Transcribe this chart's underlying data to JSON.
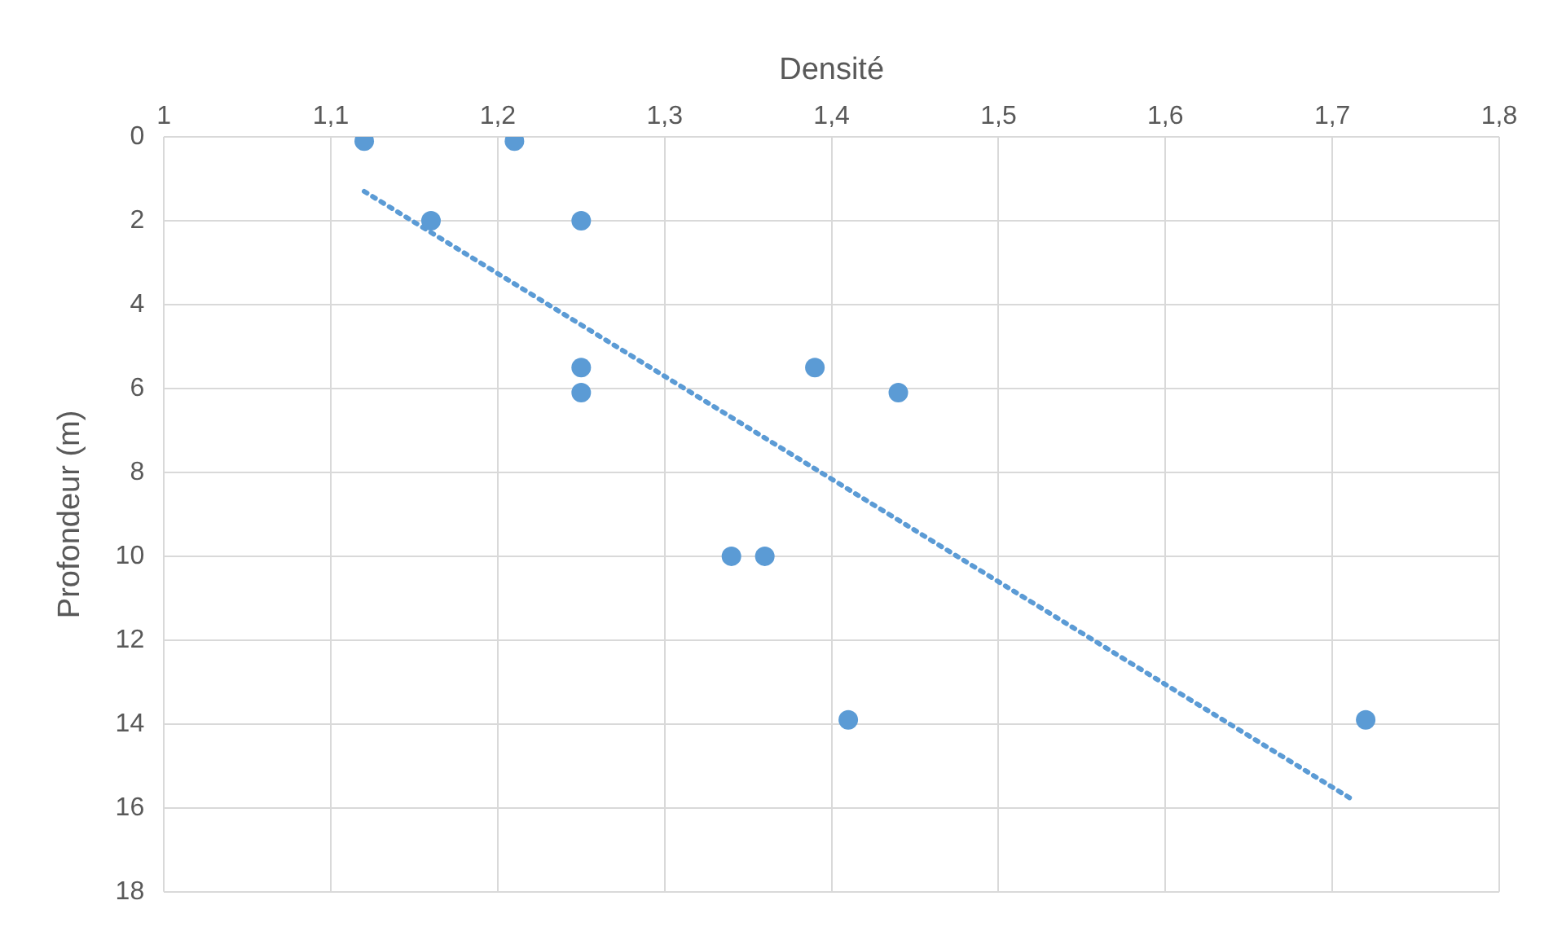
{
  "chart_data": {
    "type": "scatter",
    "xlabel": "Densité",
    "ylabel": "Profondeur (m)",
    "xlim": [
      1,
      1.8
    ],
    "xticks": [
      1,
      {
        "value": 1.1,
        "label": "1,1"
      },
      {
        "value": 1.2,
        "label": "1,2"
      },
      {
        "value": 1.3,
        "label": "1,3"
      },
      {
        "value": 1.4,
        "label": "1,4"
      },
      {
        "value": 1.5,
        "label": "1,5"
      },
      {
        "value": 1.6,
        "label": "1,6"
      },
      {
        "value": 1.7,
        "label": "1,7"
      },
      {
        "value": 1.8,
        "label": "1,8"
      }
    ],
    "ylim": [
      18,
      0
    ],
    "yticks": [
      0,
      2,
      4,
      6,
      8,
      10,
      12,
      14,
      16,
      18
    ],
    "grid": true,
    "legend": false,
    "marker": "circle",
    "series": [
      {
        "color": "#5b9bd5",
        "x": [
          1.12,
          1.21,
          1.16,
          1.25,
          1.25,
          1.25,
          1.39,
          1.44,
          1.34,
          1.36,
          1.41,
          1.72
        ],
        "values": [
          0.1,
          0.1,
          2,
          2,
          5.5,
          6.1,
          5.5,
          6.1,
          10,
          10,
          13.9,
          13.9
        ]
      },
      {
        "type": "line",
        "color": "#5b9bd5",
        "line_style": "dotted",
        "marker": "none",
        "x": [
          1.12,
          1.712
        ],
        "values": [
          1.3,
          15.8
        ]
      }
    ]
  }
}
